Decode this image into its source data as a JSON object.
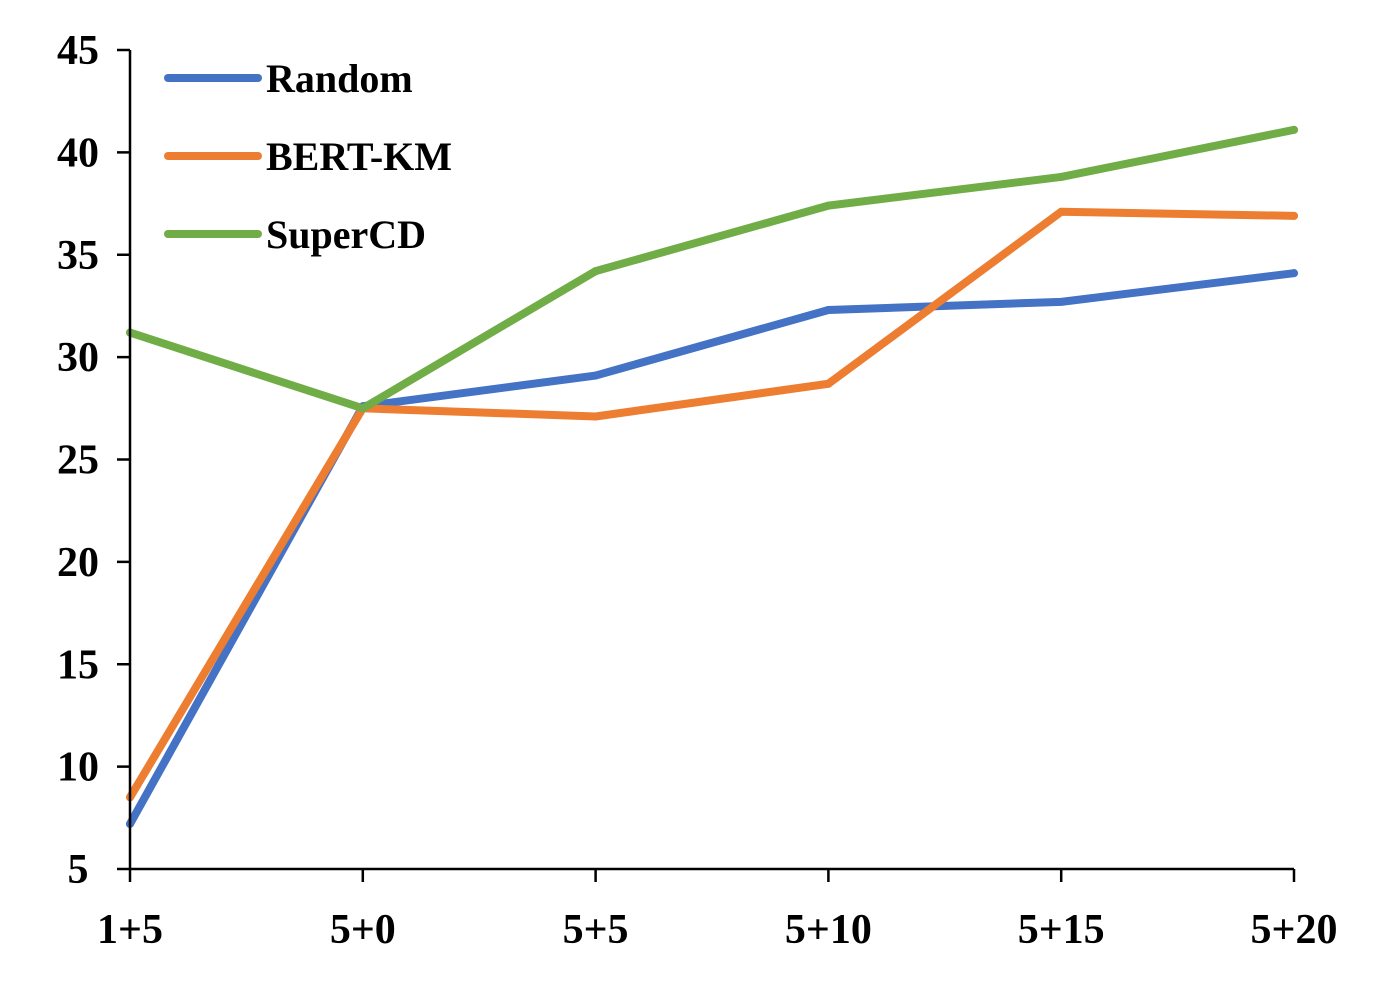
{
  "chart_data": {
    "type": "line",
    "title": "",
    "xlabel": "",
    "ylabel": "",
    "categories": [
      "1+5",
      "5+0",
      "5+5",
      "5+10",
      "5+15",
      "5+20"
    ],
    "ylim": [
      5,
      45
    ],
    "yticks": [
      5,
      10,
      15,
      20,
      25,
      30,
      35,
      40,
      45
    ],
    "grid": false,
    "legend": "top-left",
    "series": [
      {
        "name": "Random",
        "color": "#4472c4",
        "values": [
          7.2,
          27.6,
          29.1,
          32.3,
          32.7,
          34.1
        ]
      },
      {
        "name": "BERT-KM",
        "color": "#ed7d31",
        "values": [
          8.5,
          27.5,
          27.1,
          28.7,
          37.1,
          36.9
        ]
      },
      {
        "name": "SuperCD",
        "color": "#70ad47",
        "values": [
          31.2,
          27.5,
          34.2,
          37.4,
          38.8,
          41.1
        ]
      }
    ]
  }
}
